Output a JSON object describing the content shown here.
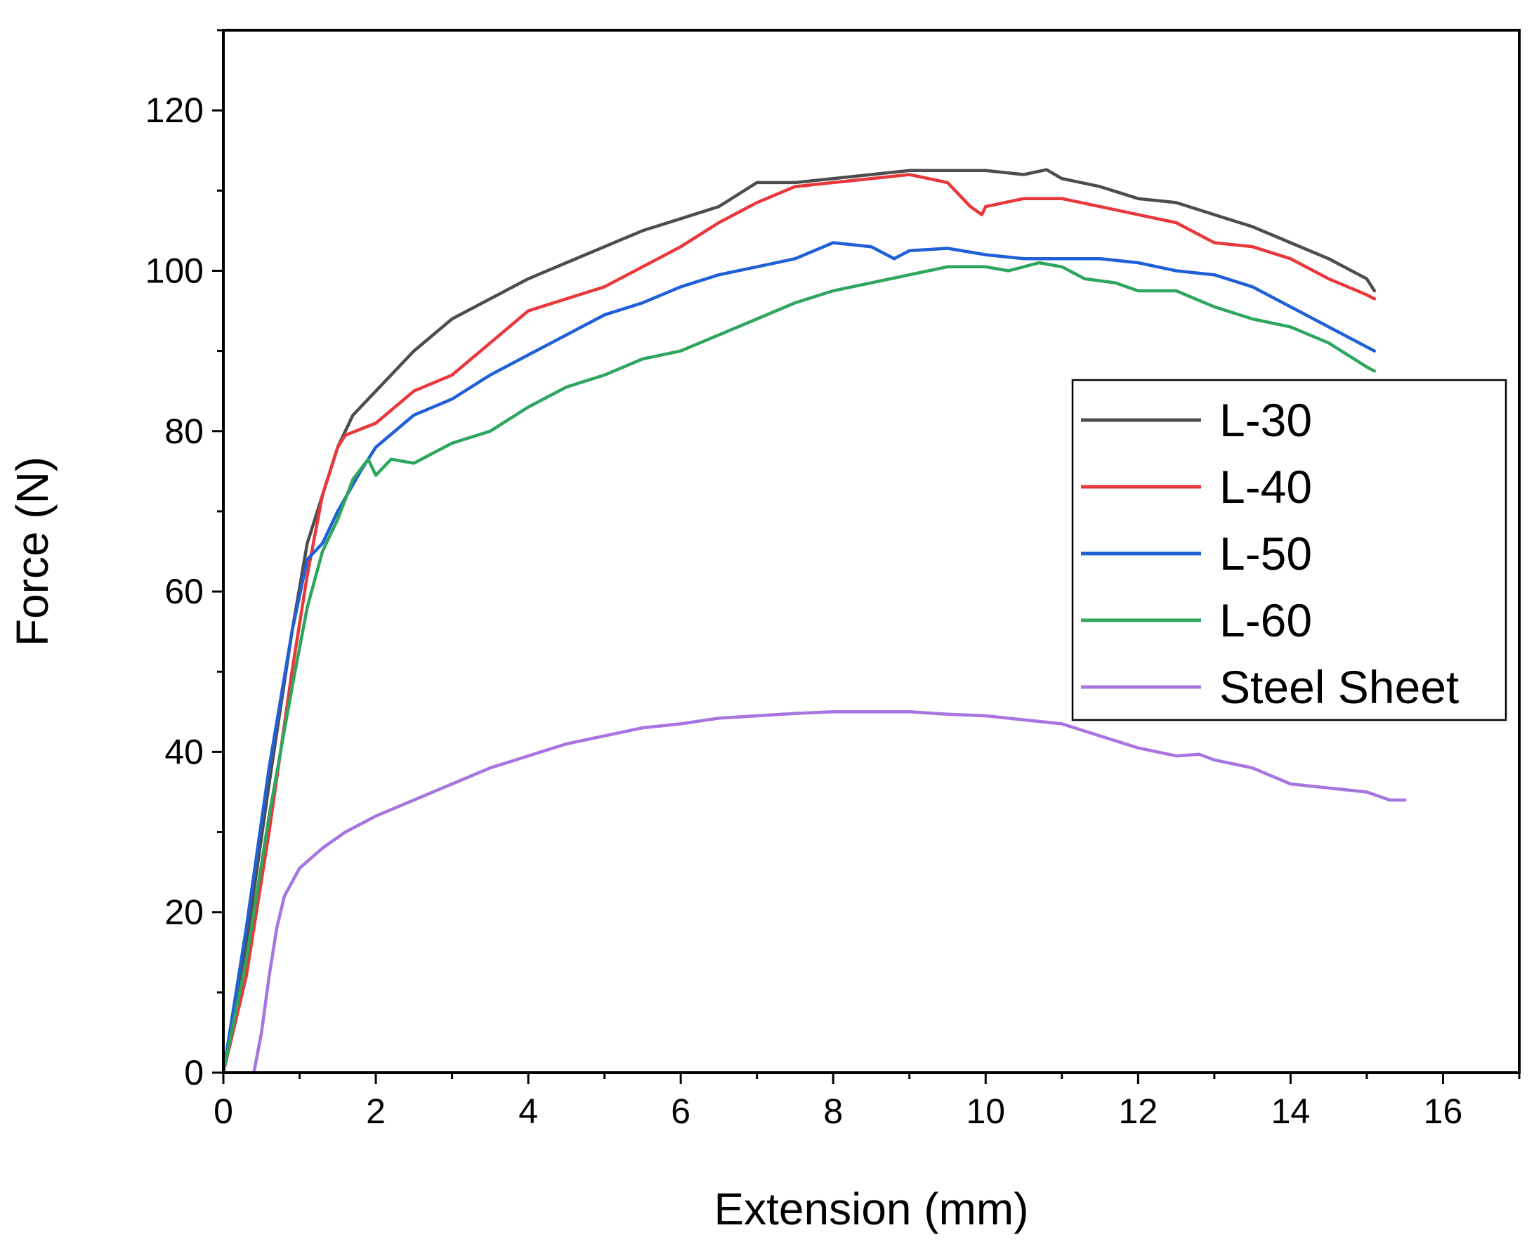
{
  "chart_data": {
    "type": "line",
    "title": "",
    "xlabel": "Extension (mm)",
    "ylabel": "Force (N)",
    "xlim": [
      0,
      17
    ],
    "ylim": [
      0,
      130
    ],
    "xticks": [
      0,
      2,
      4,
      6,
      8,
      10,
      12,
      14,
      16
    ],
    "yticks": [
      0,
      20,
      40,
      60,
      80,
      100,
      120
    ],
    "grid": false,
    "legend_position": "right",
    "series": [
      {
        "name": "L-30",
        "color": "#4d4d4d",
        "points": [
          [
            0,
            0
          ],
          [
            0.3,
            16
          ],
          [
            0.6,
            36
          ],
          [
            0.9,
            55
          ],
          [
            1.1,
            66
          ],
          [
            1.3,
            72
          ],
          [
            1.5,
            78
          ],
          [
            1.7,
            82
          ],
          [
            2,
            85
          ],
          [
            2.5,
            90
          ],
          [
            3,
            94
          ],
          [
            3.5,
            96.5
          ],
          [
            4,
            99
          ],
          [
            4.5,
            101
          ],
          [
            5,
            103
          ],
          [
            5.5,
            105
          ],
          [
            6,
            106.5
          ],
          [
            6.5,
            108
          ],
          [
            7,
            111
          ],
          [
            7.5,
            111
          ],
          [
            8,
            111.5
          ],
          [
            8.5,
            112
          ],
          [
            9,
            112.5
          ],
          [
            9.5,
            112.5
          ],
          [
            10,
            112.5
          ],
          [
            10.5,
            112
          ],
          [
            10.8,
            112.6
          ],
          [
            11,
            111.5
          ],
          [
            11.5,
            110.5
          ],
          [
            12,
            109
          ],
          [
            12.5,
            108.5
          ],
          [
            13,
            107
          ],
          [
            13.5,
            105.5
          ],
          [
            14,
            103.5
          ],
          [
            14.5,
            101.5
          ],
          [
            15,
            99
          ],
          [
            15.1,
            97.5
          ]
        ]
      },
      {
        "name": "L-40",
        "color": "#e8383b",
        "points": [
          [
            0,
            0
          ],
          [
            0.3,
            12
          ],
          [
            0.6,
            30
          ],
          [
            0.9,
            50
          ],
          [
            1.1,
            62
          ],
          [
            1.3,
            72
          ],
          [
            1.5,
            78
          ],
          [
            1.6,
            79.5
          ],
          [
            2,
            81
          ],
          [
            2.5,
            85
          ],
          [
            3,
            87
          ],
          [
            3.5,
            91
          ],
          [
            4,
            95
          ],
          [
            4.5,
            96.5
          ],
          [
            5,
            98
          ],
          [
            5.5,
            100.5
          ],
          [
            6,
            103
          ],
          [
            6.5,
            106
          ],
          [
            7,
            108.5
          ],
          [
            7.5,
            110.5
          ],
          [
            8,
            111
          ],
          [
            8.5,
            111.5
          ],
          [
            9,
            112
          ],
          [
            9.5,
            111
          ],
          [
            9.8,
            108
          ],
          [
            9.95,
            107
          ],
          [
            10,
            108
          ],
          [
            10.5,
            109
          ],
          [
            11,
            109
          ],
          [
            11.5,
            108
          ],
          [
            12,
            107
          ],
          [
            12.5,
            106
          ],
          [
            12.8,
            104.5
          ],
          [
            13,
            103.5
          ],
          [
            13.5,
            103
          ],
          [
            14,
            101.5
          ],
          [
            14.5,
            99
          ],
          [
            15,
            97
          ],
          [
            15.1,
            96.5
          ]
        ]
      },
      {
        "name": "L-50",
        "color": "#1f60d6",
        "points": [
          [
            0,
            0
          ],
          [
            0.3,
            18
          ],
          [
            0.6,
            38
          ],
          [
            0.9,
            55
          ],
          [
            1.1,
            64
          ],
          [
            1.3,
            66
          ],
          [
            1.5,
            70
          ],
          [
            1.8,
            75
          ],
          [
            2,
            78
          ],
          [
            2.5,
            82
          ],
          [
            3,
            84
          ],
          [
            3.5,
            87
          ],
          [
            4,
            89.5
          ],
          [
            4.5,
            92
          ],
          [
            5,
            94.5
          ],
          [
            5.5,
            96
          ],
          [
            6,
            98
          ],
          [
            6.5,
            99.5
          ],
          [
            7,
            100.5
          ],
          [
            7.5,
            101.5
          ],
          [
            8,
            103.5
          ],
          [
            8.5,
            103
          ],
          [
            8.8,
            101.5
          ],
          [
            9,
            102.5
          ],
          [
            9.5,
            102.8
          ],
          [
            10,
            102
          ],
          [
            10.5,
            101.5
          ],
          [
            11,
            101.5
          ],
          [
            11.5,
            101.5
          ],
          [
            12,
            101
          ],
          [
            12.5,
            100
          ],
          [
            13,
            99.5
          ],
          [
            13.5,
            98
          ],
          [
            14,
            95.5
          ],
          [
            14.5,
            93
          ],
          [
            15,
            90.5
          ],
          [
            15.1,
            90
          ]
        ]
      },
      {
        "name": "L-60",
        "color": "#2ea65e",
        "points": [
          [
            0,
            0
          ],
          [
            0.3,
            14
          ],
          [
            0.6,
            32
          ],
          [
            0.9,
            48
          ],
          [
            1.1,
            58
          ],
          [
            1.3,
            65
          ],
          [
            1.5,
            69
          ],
          [
            1.7,
            74
          ],
          [
            1.9,
            76.5
          ],
          [
            2,
            74.5
          ],
          [
            2.2,
            76.5
          ],
          [
            2.5,
            76
          ],
          [
            3,
            78.5
          ],
          [
            3.5,
            80
          ],
          [
            4,
            83
          ],
          [
            4.5,
            85.5
          ],
          [
            5,
            87
          ],
          [
            5.5,
            89
          ],
          [
            6,
            90
          ],
          [
            6.5,
            92
          ],
          [
            7,
            94
          ],
          [
            7.5,
            96
          ],
          [
            8,
            97.5
          ],
          [
            8.5,
            98.5
          ],
          [
            9,
            99.5
          ],
          [
            9.5,
            100.5
          ],
          [
            10,
            100.5
          ],
          [
            10.3,
            100
          ],
          [
            10.7,
            101
          ],
          [
            11,
            100.5
          ],
          [
            11.3,
            99
          ],
          [
            11.7,
            98.5
          ],
          [
            12,
            97.5
          ],
          [
            12.5,
            97.5
          ],
          [
            13,
            95.5
          ],
          [
            13.5,
            94
          ],
          [
            14,
            93
          ],
          [
            14.5,
            91
          ],
          [
            15,
            88
          ],
          [
            15.1,
            87.5
          ]
        ]
      },
      {
        "name": "Steel Sheet",
        "color": "#a774e0",
        "points": [
          [
            0.4,
            0
          ],
          [
            0.5,
            5
          ],
          [
            0.6,
            12
          ],
          [
            0.7,
            18
          ],
          [
            0.8,
            22
          ],
          [
            1,
            25.5
          ],
          [
            1.3,
            28
          ],
          [
            1.6,
            30
          ],
          [
            2,
            32
          ],
          [
            2.5,
            34
          ],
          [
            3,
            36
          ],
          [
            3.5,
            38
          ],
          [
            4,
            39.5
          ],
          [
            4.5,
            41
          ],
          [
            5,
            42
          ],
          [
            5.5,
            43
          ],
          [
            6,
            43.5
          ],
          [
            6.5,
            44.2
          ],
          [
            7,
            44.5
          ],
          [
            7.5,
            44.8
          ],
          [
            8,
            45
          ],
          [
            8.5,
            45
          ],
          [
            9,
            45
          ],
          [
            9.5,
            44.7
          ],
          [
            10,
            44.5
          ],
          [
            10.5,
            44
          ],
          [
            11,
            43.5
          ],
          [
            11.5,
            42
          ],
          [
            12,
            40.5
          ],
          [
            12.5,
            39.5
          ],
          [
            12.8,
            39.7
          ],
          [
            13,
            39
          ],
          [
            13.5,
            38
          ],
          [
            14,
            36
          ],
          [
            14.5,
            35.5
          ],
          [
            15,
            35
          ],
          [
            15.3,
            34
          ],
          [
            15.5,
            34
          ]
        ]
      }
    ]
  }
}
